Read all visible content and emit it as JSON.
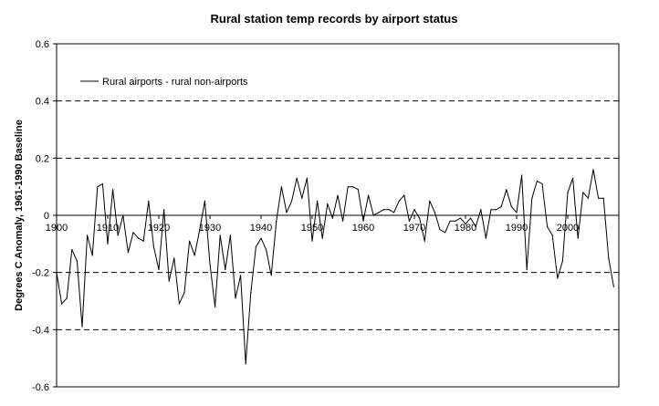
{
  "chart_data": {
    "type": "line",
    "title": "Rural station temp records by airport status",
    "xlabel": "",
    "ylabel": "Degrees C Anomaly, 1961-1990 Baseline",
    "xlim": [
      1900,
      2010
    ],
    "ylim": [
      -0.6,
      0.6
    ],
    "x_ticks": [
      "1900",
      "1910",
      "1920",
      "1930",
      "1940",
      "1950",
      "1960",
      "1970",
      "1980",
      "1990",
      "2000"
    ],
    "y_ticks": [
      "0.6",
      "0.4",
      "0.2",
      "0",
      "-0.2",
      "-0.4",
      "-0.6"
    ],
    "grid": "dashed horizontal at ±0.2, ±0.4",
    "legend": "top-left",
    "series": [
      {
        "name": "Rural airports - rural non-airports",
        "color": "#000000",
        "x": [
          1900,
          1901,
          1902,
          1903,
          1904,
          1905,
          1906,
          1907,
          1908,
          1909,
          1910,
          1911,
          1912,
          1913,
          1914,
          1915,
          1916,
          1917,
          1918,
          1919,
          1920,
          1921,
          1922,
          1923,
          1924,
          1925,
          1926,
          1927,
          1928,
          1929,
          1930,
          1931,
          1932,
          1933,
          1934,
          1935,
          1936,
          1937,
          1938,
          1939,
          1940,
          1941,
          1942,
          1943,
          1944,
          1945,
          1946,
          1947,
          1948,
          1949,
          1950,
          1951,
          1952,
          1953,
          1954,
          1955,
          1956,
          1957,
          1958,
          1959,
          1960,
          1961,
          1962,
          1963,
          1964,
          1965,
          1966,
          1967,
          1968,
          1969,
          1970,
          1971,
          1972,
          1973,
          1974,
          1975,
          1976,
          1977,
          1978,
          1979,
          1980,
          1981,
          1982,
          1983,
          1984,
          1985,
          1986,
          1987,
          1988,
          1989,
          1990,
          1991,
          1992,
          1993,
          1994,
          1995,
          1996,
          1997,
          1998,
          1999,
          2000,
          2001,
          2002,
          2003,
          2004,
          2005,
          2006,
          2007,
          2008,
          2009
        ],
        "values": [
          -0.2,
          -0.31,
          -0.29,
          -0.12,
          -0.16,
          -0.39,
          -0.07,
          -0.14,
          0.1,
          0.11,
          -0.1,
          0.09,
          -0.07,
          0.0,
          -0.13,
          -0.06,
          -0.08,
          -0.09,
          0.05,
          -0.11,
          -0.19,
          0.02,
          -0.23,
          -0.15,
          -0.31,
          -0.27,
          -0.09,
          -0.14,
          -0.05,
          0.05,
          -0.17,
          -0.32,
          -0.07,
          -0.19,
          -0.07,
          -0.29,
          -0.21,
          -0.52,
          -0.27,
          -0.11,
          -0.08,
          -0.12,
          -0.21,
          -0.02,
          0.1,
          0.01,
          0.05,
          0.13,
          0.06,
          0.13,
          -0.09,
          0.05,
          -0.08,
          0.04,
          -0.01,
          0.07,
          -0.02,
          0.1,
          0.1,
          0.09,
          -0.02,
          0.07,
          0.0,
          0.01,
          0.02,
          0.02,
          0.01,
          0.05,
          0.07,
          -0.02,
          0.02,
          -0.01,
          -0.09,
          0.05,
          0.01,
          -0.05,
          -0.06,
          -0.02,
          -0.02,
          -0.01,
          -0.03,
          -0.01,
          -0.04,
          0.02,
          -0.08,
          0.02,
          0.02,
          0.03,
          0.09,
          0.03,
          0.01,
          0.14,
          -0.19,
          0.06,
          0.12,
          0.11,
          -0.04,
          -0.07,
          -0.22,
          -0.16,
          0.08,
          0.13,
          -0.08,
          0.08,
          0.06,
          0.16,
          0.06,
          0.06,
          -0.15,
          -0.25
        ]
      }
    ]
  }
}
